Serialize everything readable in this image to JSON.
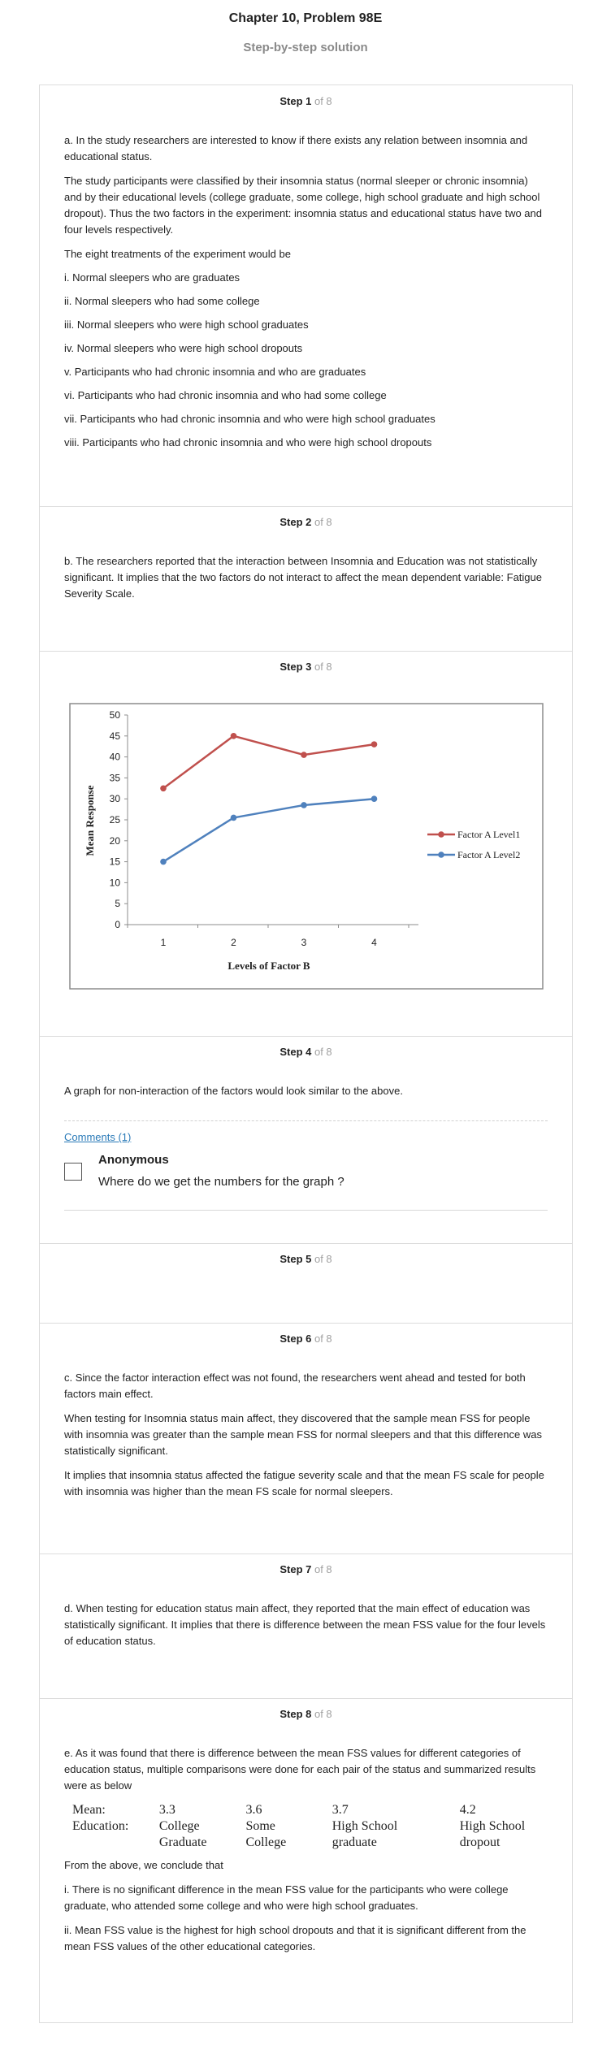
{
  "header": {
    "title": "Chapter 10, Problem 98E",
    "subtitle": "Step-by-step solution"
  },
  "steps": [
    {
      "label": "Step 1",
      "of": " of 8",
      "paragraphs": [
        "a. In the study researchers are interested to know if there exists any relation between insomnia and educational status.",
        "The study participants were classified by their insomnia status (normal sleeper or chronic insomnia) and by their educational levels (college graduate, some college, high school graduate and high school dropout). Thus the two factors in the experiment: insomnia status and educational status have two and four levels respectively.",
        "The eight treatments of the experiment would be",
        "i. Normal sleepers who are graduates",
        "ii. Normal sleepers who had some college",
        "iii. Normal sleepers who were high school graduates",
        "iv. Normal sleepers who were high school dropouts",
        "v. Participants who had chronic insomnia and who are graduates",
        "vi. Participants who had chronic insomnia and who had some college",
        "vii. Participants who had chronic insomnia and who were high school graduates",
        "viii. Participants who had chronic insomnia and who were high school dropouts"
      ]
    },
    {
      "label": "Step 2",
      "of": " of 8",
      "paragraphs": [
        "b. The researchers reported that the interaction between Insomnia and Education was not statistically significant. It implies that the two factors do not interact to affect the mean dependent variable: Fatigue Severity Scale."
      ]
    },
    {
      "label": "Step 3",
      "of": " of 8"
    },
    {
      "label": "Step 4",
      "of": " of 8",
      "paragraphs": [
        "A graph for non-interaction of the factors would look similar to the above."
      ],
      "comments_link": "Comments (1)",
      "comment": {
        "author": "Anonymous",
        "text": "Where do we get the numbers for the graph ?"
      }
    },
    {
      "label": "Step 5",
      "of": " of 8"
    },
    {
      "label": "Step 6",
      "of": " of 8",
      "paragraphs": [
        "c. Since the factor interaction effect was not found, the researchers went ahead and tested for both factors main effect.",
        "When testing for Insomnia status main affect, they discovered that the sample mean FSS for people with insomnia was greater than the sample mean FSS for normal sleepers and that this difference was statistically significant.",
        "It implies that insomnia status affected the fatigue severity scale and that the mean FS scale for people with insomnia was higher than the mean FS scale for normal sleepers."
      ]
    },
    {
      "label": "Step 7",
      "of": " of 8",
      "paragraphs": [
        "d. When testing for education status main affect, they reported that the main effect of education was statistically significant. It implies that there is difference between the mean FSS value for the four levels of education status."
      ]
    },
    {
      "label": "Step 8",
      "of": " of 8",
      "paragraphs": [
        "e. As it was found that there is difference between the mean FSS values for different categories of education status, multiple comparisons were done for each pair of the status and summarized results were as below"
      ],
      "table": {
        "mean_label": "Mean:",
        "education_label": "Education:",
        "means": [
          "3.3",
          "3.6",
          "3.7",
          "4.2"
        ],
        "education": [
          [
            "College",
            "Graduate"
          ],
          [
            "Some",
            "College"
          ],
          [
            "High School",
            "graduate"
          ],
          [
            "High School",
            "dropout"
          ]
        ]
      },
      "after": [
        "From the above, we conclude that",
        "i. There is no significant difference in the mean FSS value for the participants who were college graduate, who attended some college and who were high school graduates.",
        "ii. Mean FSS value is the highest for high school dropouts and that it is significant different from the mean FSS values of the other educational categories."
      ]
    }
  ],
  "chart_data": {
    "type": "line",
    "x": [
      1,
      2,
      3,
      4
    ],
    "xlabel": "Levels of Factor B",
    "ylabel": "Mean Response",
    "ylim": [
      0,
      50
    ],
    "yticks": [
      0,
      5,
      10,
      15,
      20,
      25,
      30,
      35,
      40,
      45,
      50
    ],
    "xticks": [
      1,
      2,
      3,
      4
    ],
    "legend_position": "right",
    "series": [
      {
        "name": "Factor A Level1",
        "values": [
          32.5,
          45,
          40.5,
          43
        ],
        "color": "#c0504d"
      },
      {
        "name": "Factor A Level2",
        "values": [
          15,
          25.5,
          28.5,
          30
        ],
        "color": "#4f81bd"
      }
    ]
  }
}
